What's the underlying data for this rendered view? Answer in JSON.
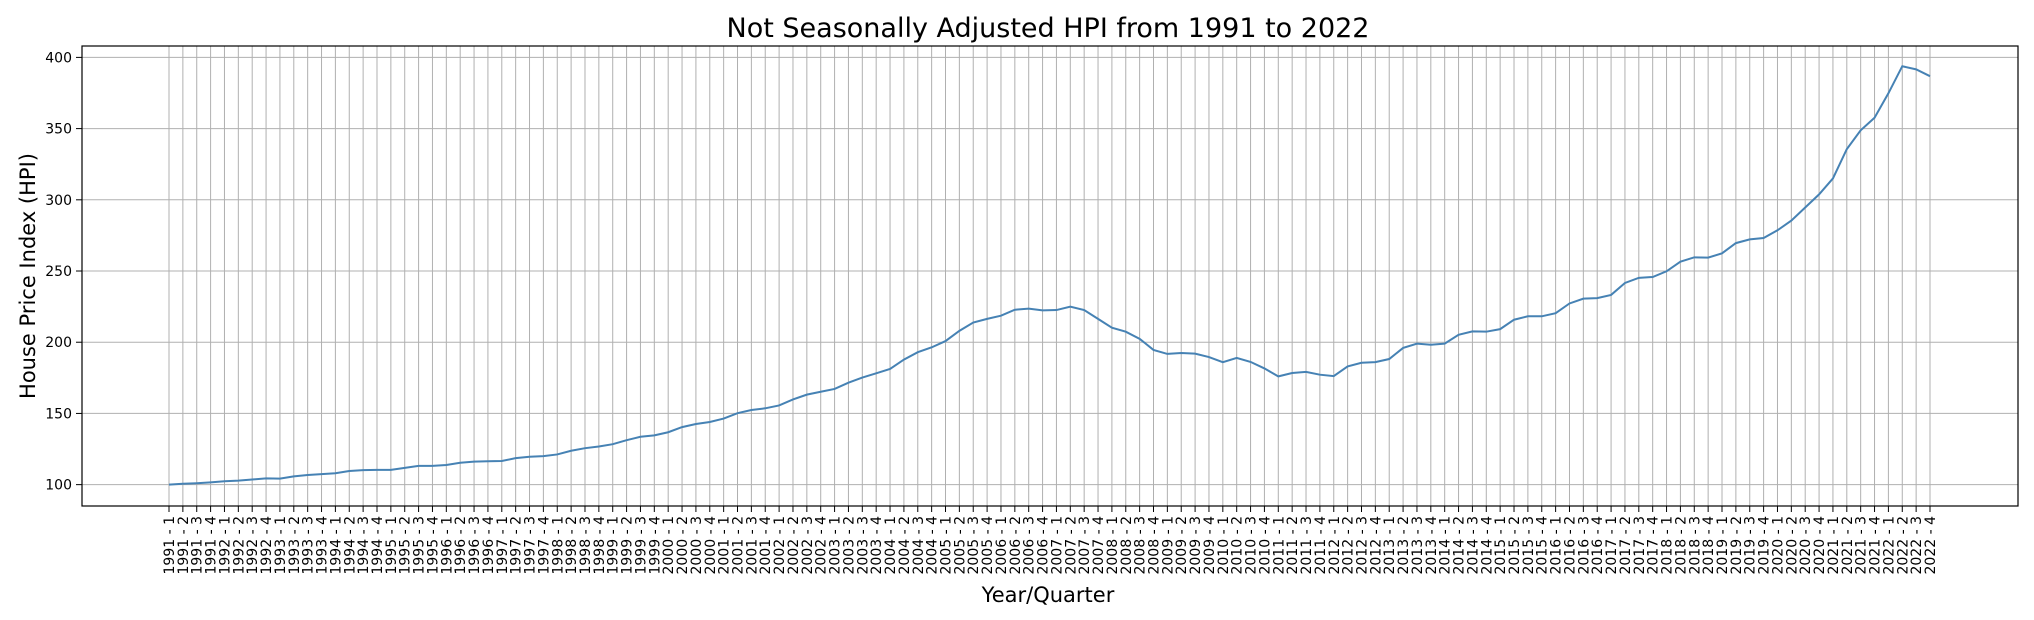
{
  "chart_data": {
    "type": "line",
    "title": "Not Seasonally Adjusted HPI from 1991 to 2022",
    "xlabel": "Year/Quarter",
    "ylabel": "House Price Index (HPI)",
    "ylim": [
      85,
      408
    ],
    "yticks": [
      100,
      150,
      200,
      250,
      300,
      350,
      400
    ],
    "grid": true,
    "x": [
      "1991 - 1",
      "1991 - 2",
      "1991 - 3",
      "1991 - 4",
      "1992 - 1",
      "1992 - 2",
      "1992 - 3",
      "1992 - 4",
      "1993 - 1",
      "1993 - 2",
      "1993 - 3",
      "1993 - 4",
      "1994 - 1",
      "1994 - 2",
      "1994 - 3",
      "1994 - 4",
      "1995 - 1",
      "1995 - 2",
      "1995 - 3",
      "1995 - 4",
      "1996 - 1",
      "1996 - 2",
      "1996 - 3",
      "1996 - 4",
      "1997 - 1",
      "1997 - 2",
      "1997 - 3",
      "1997 - 4",
      "1998 - 1",
      "1998 - 2",
      "1998 - 3",
      "1998 - 4",
      "1999 - 1",
      "1999 - 2",
      "1999 - 3",
      "1999 - 4",
      "2000 - 1",
      "2000 - 2",
      "2000 - 3",
      "2000 - 4",
      "2001 - 1",
      "2001 - 2",
      "2001 - 3",
      "2001 - 4",
      "2002 - 1",
      "2002 - 2",
      "2002 - 3",
      "2002 - 4",
      "2003 - 1",
      "2003 - 2",
      "2003 - 3",
      "2003 - 4",
      "2004 - 1",
      "2004 - 2",
      "2004 - 3",
      "2004 - 4",
      "2005 - 1",
      "2005 - 2",
      "2005 - 3",
      "2005 - 4",
      "2006 - 1",
      "2006 - 2",
      "2006 - 3",
      "2006 - 4",
      "2007 - 1",
      "2007 - 2",
      "2007 - 3",
      "2007 - 4",
      "2008 - 1",
      "2008 - 2",
      "2008 - 3",
      "2008 - 4",
      "2009 - 1",
      "2009 - 2",
      "2009 - 3",
      "2009 - 4",
      "2010 - 1",
      "2010 - 2",
      "2010 - 3",
      "2010 - 4",
      "2011 - 1",
      "2011 - 2",
      "2011 - 3",
      "2011 - 4",
      "2012 - 1",
      "2012 - 2",
      "2012 - 3",
      "2012 - 4",
      "2013 - 1",
      "2013 - 2",
      "2013 - 3",
      "2013 - 4",
      "2014 - 1",
      "2014 - 2",
      "2014 - 3",
      "2014 - 4",
      "2015 - 1",
      "2015 - 2",
      "2015 - 3",
      "2015 - 4",
      "2016 - 1",
      "2016 - 2",
      "2016 - 3",
      "2016 - 4",
      "2017 - 1",
      "2017 - 2",
      "2017 - 3",
      "2017 - 4",
      "2018 - 1",
      "2018 - 2",
      "2018 - 3",
      "2018 - 4",
      "2019 - 1",
      "2019 - 2",
      "2019 - 3",
      "2019 - 4",
      "2020 - 1",
      "2020 - 2",
      "2020 - 3",
      "2020 - 4",
      "2021 - 1",
      "2021 - 2",
      "2021 - 3",
      "2021 - 4",
      "2022 - 1",
      "2022 - 2",
      "2022 - 3",
      "2022 - 4"
    ],
    "series": [
      {
        "color": "#4682b4",
        "values": [
          100,
          100.6,
          101,
          101.6,
          102.4,
          102.8,
          103.6,
          104.4,
          104.2,
          105.8,
          106.8,
          107.4,
          108,
          109.6,
          110.2,
          110.4,
          110.4,
          111.8,
          113.2,
          113.2,
          113.8,
          115.4,
          116.2,
          116.4,
          116.6,
          118.6,
          119.6,
          120,
          121.2,
          123.8,
          125.6,
          126.8,
          128.4,
          131.2,
          133.6,
          134.6,
          136.8,
          140.4,
          142.6,
          144,
          146.4,
          150.2,
          152.4,
          153.6,
          155.6,
          159.8,
          163.2,
          165.2,
          167.2,
          171.6,
          175.2,
          178.2,
          181.2,
          187.8,
          193,
          196.4,
          200.8,
          208,
          213.8,
          216.4,
          218.6,
          222.8,
          223.6,
          222.4,
          222.6,
          225,
          222.6,
          216.4,
          210.2,
          207.4,
          202.4,
          194.6,
          191.8,
          192.4,
          192,
          189.6,
          186,
          189,
          186.2,
          181.6,
          176,
          178.4,
          179.2,
          177.2,
          176.2,
          183,
          185.6,
          186,
          188.2,
          196,
          199,
          198.2,
          199,
          205.2,
          207.6,
          207.4,
          209.2,
          215.8,
          218.2,
          218.2,
          220.4,
          227.2,
          230.6,
          231,
          233.2,
          241.6,
          245.2,
          245.8,
          249.8,
          256.6,
          259.6,
          259.4,
          262.4,
          269.6,
          272.2,
          273.2,
          278.6,
          285.4,
          294.6,
          303.8,
          315,
          335.6,
          348.8,
          357.6,
          374.8,
          393.8,
          391.6,
          386.8
        ]
      }
    ]
  }
}
